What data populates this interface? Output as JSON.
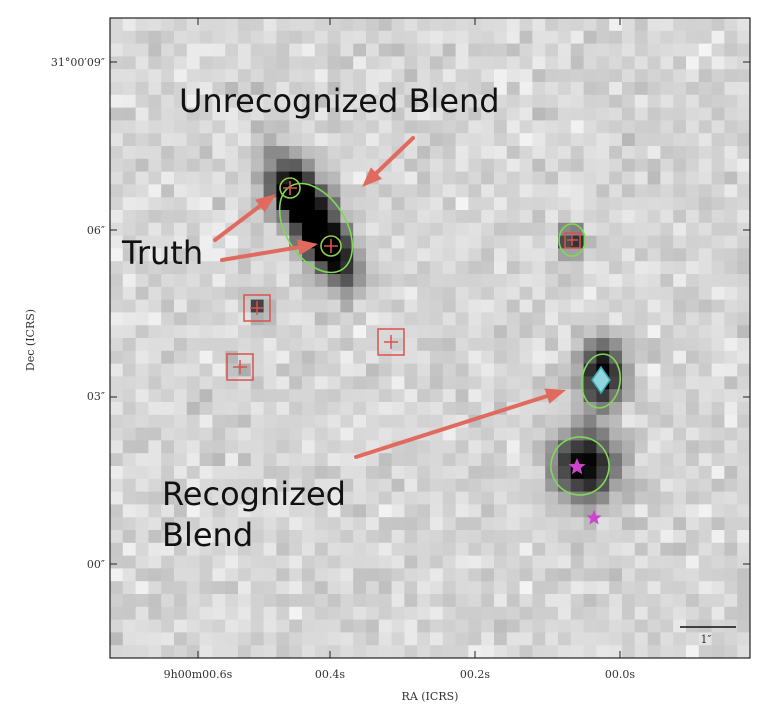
{
  "axes": {
    "x_title": "RA (ICRS)",
    "y_title": "Dec (ICRS)",
    "x_ticks": [
      {
        "label": "9h00m00.6s"
      },
      {
        "label": "00.4s"
      },
      {
        "label": "00.2s"
      },
      {
        "label": "00.0s"
      }
    ],
    "y_ticks": [
      {
        "label": "31°00′09″"
      },
      {
        "label": "06″"
      },
      {
        "label": "03″"
      },
      {
        "label": "00″"
      }
    ]
  },
  "scale_bar": {
    "label": "1″"
  },
  "annotations": {
    "unrecognized": "Unrecognized Blend",
    "truth": "Truth",
    "recognized_line1": "Recognized",
    "recognized_line2": "Blend"
  },
  "colors": {
    "arrow": "#e06a5e",
    "ellipse": "#7ed957",
    "square": "#d9534f",
    "diamond": "#8fd6de",
    "star": "#cc44cc"
  }
}
